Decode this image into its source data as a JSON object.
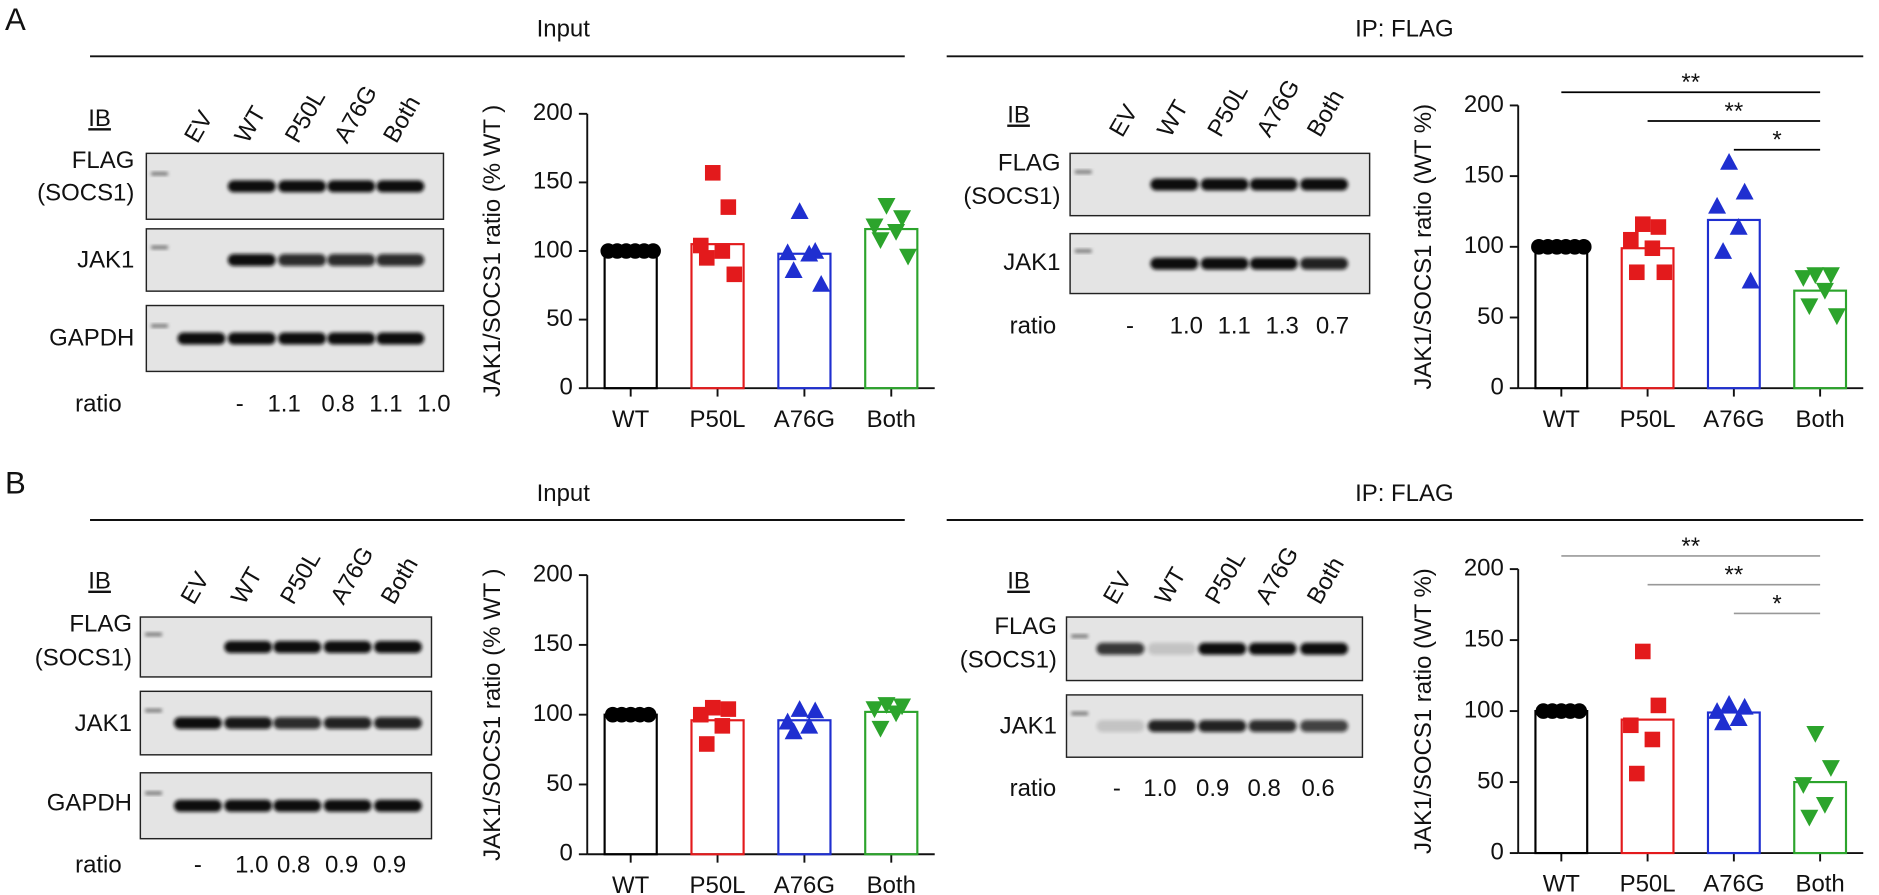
{
  "panels": [
    {
      "label": "A",
      "sections": [
        {
          "header": "Input",
          "blot": {
            "ib": "IB",
            "lanes": [
              "EV",
              "WT",
              "P50L",
              "A76G",
              "Both"
            ],
            "rows": [
              [
                "FLAG",
                "(SOCS1)"
              ],
              [
                "JAK1"
              ],
              [
                "GAPDH"
              ]
            ],
            "ratio_label": "ratio",
            "ratios": [
              "-",
              "1.1",
              "0.8",
              "1.1",
              "1.0"
            ]
          }
        },
        {
          "header": "IP: FLAG",
          "blot": {
            "ib": "IB",
            "lanes": [
              "EV",
              "WT",
              "P50L",
              "A76G",
              "Both"
            ],
            "rows": [
              [
                "FLAG",
                "(SOCS1)"
              ],
              [
                "JAK1"
              ]
            ],
            "ratio_label": "ratio",
            "ratios": [
              "-",
              "1.0",
              "1.1",
              "1.3",
              "0.7"
            ]
          }
        }
      ]
    },
    {
      "label": "B",
      "sections": [
        {
          "header": "Input",
          "blot": {
            "ib": "IB",
            "lanes": [
              "EV",
              "WT",
              "P50L",
              "A76G",
              "Both"
            ],
            "rows": [
              [
                "FLAG",
                "(SOCS1)"
              ],
              [
                "JAK1"
              ],
              [
                "GAPDH"
              ]
            ],
            "ratio_label": "ratio",
            "ratios": [
              "-",
              "1.0",
              "0.8",
              "0.9",
              "0.9"
            ]
          }
        },
        {
          "header": "IP: FLAG",
          "blot": {
            "ib": "IB",
            "lanes": [
              "EV",
              "WT",
              "P50L",
              "A76G",
              "Both"
            ],
            "rows": [
              [
                "FLAG",
                "(SOCS1)"
              ],
              [
                "JAK1"
              ]
            ],
            "ratio_label": "ratio",
            "ratios": [
              "-",
              "1.0",
              "0.9",
              "0.8",
              "0.6"
            ]
          }
        }
      ]
    }
  ],
  "chart_data": [
    {
      "type": "bar",
      "ylabel": "JAK1/SOCS1 ratio (% WT )",
      "categories": [
        "WT",
        "P50L",
        "A76G",
        "Both"
      ],
      "values": [
        100,
        105,
        98,
        116
      ],
      "colors": [
        "#000000",
        "#e31a1c",
        "#1f2fd0",
        "#2ca42c"
      ],
      "markers": [
        "circle",
        "square",
        "triangle-up",
        "triangle-down"
      ],
      "points": [
        [
          100,
          100,
          100,
          100,
          100,
          100
        ],
        [
          157,
          132,
          104,
          100,
          95,
          83
        ],
        [
          129,
          100,
          99,
          98,
          86,
          76
        ],
        [
          133,
          124,
          118,
          114,
          108,
          96
        ]
      ],
      "ylim": [
        0,
        200
      ],
      "yticks": [
        0,
        50,
        100,
        150,
        200
      ],
      "significance": [],
      "significance_color": "#000000"
    },
    {
      "type": "bar",
      "ylabel": "JAK1/SOCS1 ratio (WT %)",
      "categories": [
        "WT",
        "P50L",
        "A76G",
        "Both"
      ],
      "values": [
        100,
        99,
        119,
        69
      ],
      "colors": [
        "#000000",
        "#e31a1c",
        "#1f2fd0",
        "#2ca42c"
      ],
      "markers": [
        "circle",
        "square",
        "triangle-up",
        "triangle-down"
      ],
      "points": [
        [
          100,
          100,
          100,
          100,
          100,
          100
        ],
        [
          116,
          114,
          105,
          99,
          82,
          82
        ],
        [
          160,
          139,
          129,
          114,
          97,
          76
        ],
        [
          80,
          80,
          78,
          69,
          58,
          51
        ]
      ],
      "ylim": [
        0,
        200
      ],
      "yticks": [
        0,
        50,
        100,
        150,
        200
      ],
      "significance": [
        {
          "from": 0,
          "to": 3,
          "label": "**"
        },
        {
          "from": 1,
          "to": 3,
          "label": "**"
        },
        {
          "from": 2,
          "to": 3,
          "label": "*"
        }
      ],
      "significance_color": "#000000"
    },
    {
      "type": "bar",
      "ylabel": "JAK1/SOCS1 ratio (% WT )",
      "categories": [
        "WT",
        "P50L",
        "A76G",
        "Both"
      ],
      "values": [
        100,
        96,
        96,
        102
      ],
      "colors": [
        "#000000",
        "#e31a1c",
        "#1f2fd0",
        "#2ca42c"
      ],
      "markers": [
        "circle",
        "square",
        "triangle-up",
        "triangle-down"
      ],
      "points": [
        [
          100,
          100,
          100,
          100,
          100
        ],
        [
          105,
          104,
          100,
          92,
          79
        ],
        [
          104,
          103,
          95,
          92,
          88
        ],
        [
          107,
          106,
          104,
          101,
          90
        ]
      ],
      "ylim": [
        0,
        200
      ],
      "yticks": [
        0,
        50,
        100,
        150,
        200
      ],
      "significance": [],
      "significance_color": "#999999"
    },
    {
      "type": "bar",
      "ylabel": "JAK1/SOCS1 ratio (WT %)",
      "categories": [
        "WT",
        "P50L",
        "A76G",
        "Both"
      ],
      "values": [
        100,
        94,
        99,
        50
      ],
      "colors": [
        "#000000",
        "#e31a1c",
        "#1f2fd0",
        "#2ca42c"
      ],
      "markers": [
        "circle",
        "square",
        "triangle-up",
        "triangle-down"
      ],
      "points": [
        [
          100,
          100,
          100,
          100,
          100
        ],
        [
          142,
          104,
          90,
          80,
          56
        ],
        [
          105,
          103,
          100,
          95,
          92
        ],
        [
          84,
          60,
          48,
          34,
          25
        ]
      ],
      "ylim": [
        0,
        200
      ],
      "yticks": [
        0,
        50,
        100,
        150,
        200
      ],
      "significance": [
        {
          "from": 0,
          "to": 3,
          "label": "**"
        },
        {
          "from": 1,
          "to": 3,
          "label": "**"
        },
        {
          "from": 2,
          "to": 3,
          "label": "*"
        }
      ],
      "significance_color": "#999999"
    }
  ]
}
